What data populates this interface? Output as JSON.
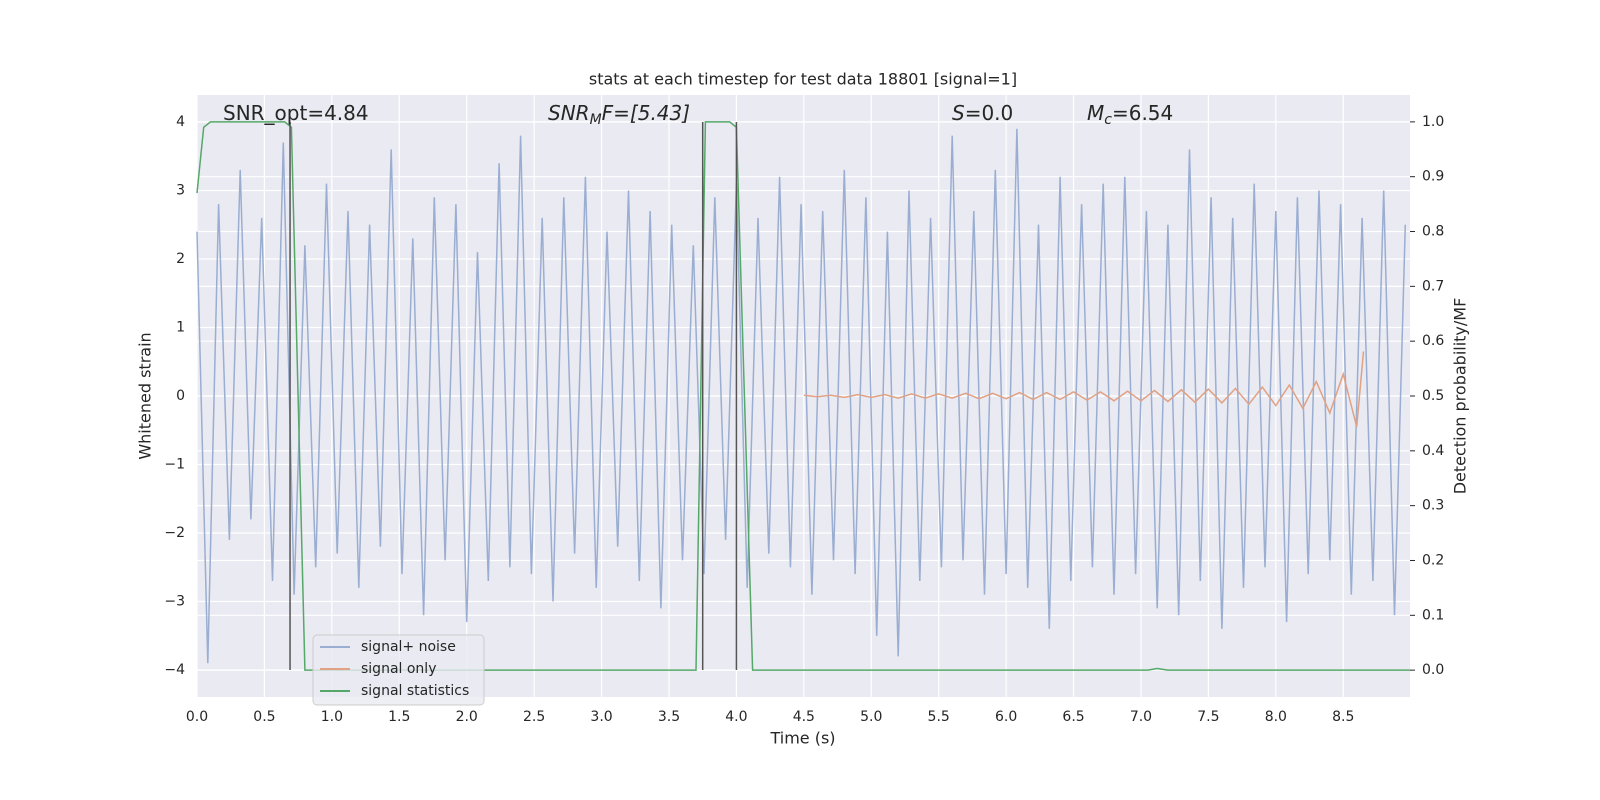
{
  "chart_data": {
    "type": "line",
    "title": "stats at each timestep for test data 18801 [signal=1]",
    "xlabel": "Time (s)",
    "ylabel": "Whitened strain",
    "y2label": "Detection probability/MF",
    "xlim": [
      0,
      8.995
    ],
    "ylim": [
      -4.394,
      4.394
    ],
    "y2lim": [
      -0.049,
      1.049
    ],
    "xticks": [
      {
        "value": 0,
        "label": "0.0"
      },
      0.5,
      {
        "value": 1,
        "label": "1.0"
      },
      1.5,
      {
        "value": 2,
        "label": "2.0"
      },
      2.5,
      {
        "value": 3,
        "label": "3.0"
      },
      3.5,
      {
        "value": 4,
        "label": "4.0"
      },
      4.5,
      {
        "value": 5,
        "label": "5.0"
      },
      5.5,
      {
        "value": 6,
        "label": "6.0"
      },
      6.5,
      {
        "value": 7,
        "label": "7.0"
      },
      7.5,
      {
        "value": 8,
        "label": "8.0"
      },
      8.5
    ],
    "yticks": [
      {
        "value": -4,
        "label": "−4"
      },
      {
        "value": -3,
        "label": "−3"
      },
      {
        "value": -2,
        "label": "−2"
      },
      {
        "value": -1,
        "label": "−1"
      },
      0,
      1,
      2,
      3,
      4
    ],
    "y2ticks": [
      {
        "value": 0,
        "label": "0.0"
      },
      0.1,
      0.2,
      0.3,
      0.4,
      0.5,
      0.6,
      0.7,
      0.8,
      0.9,
      {
        "value": 1,
        "label": "1.0"
      }
    ],
    "grid": true,
    "legend": "lower left",
    "series": [
      {
        "name": "signal+ noise",
        "color": "#9aaed1",
        "x": [
          0,
          0.08,
          0.16,
          0.24,
          0.32,
          0.4,
          0.48,
          0.56,
          0.64,
          0.72,
          0.8,
          0.88,
          0.96,
          1.04,
          1.12,
          1.2,
          1.28,
          1.36,
          1.44,
          1.52,
          1.6,
          1.68,
          1.76,
          1.84,
          1.92,
          2,
          2.08,
          2.16,
          2.24,
          2.32,
          2.4,
          2.48,
          2.56,
          2.64,
          2.72,
          2.8,
          2.88,
          2.96,
          3.04,
          3.12,
          3.2,
          3.28,
          3.36,
          3.44,
          3.52,
          3.6,
          3.68,
          3.76,
          3.84,
          3.92,
          4,
          4.08,
          4.16,
          4.24,
          4.32,
          4.4,
          4.48,
          4.56,
          4.64,
          4.72,
          4.8,
          4.88,
          4.96,
          5.04,
          5.12,
          5.2,
          5.28,
          5.36,
          5.44,
          5.52,
          5.6,
          5.68,
          5.76,
          5.84,
          5.92,
          6,
          6.08,
          6.16,
          6.24,
          6.32,
          6.4,
          6.48,
          6.56,
          6.64,
          6.72,
          6.8,
          6.88,
          6.96,
          7.04,
          7.12,
          7.2,
          7.28,
          7.36,
          7.44,
          7.52,
          7.6,
          7.68,
          7.76,
          7.84,
          7.92,
          8,
          8.08,
          8.16,
          8.24,
          8.32,
          8.4,
          8.48,
          8.56,
          8.64,
          8.72,
          8.8,
          8.88,
          8.96
        ],
        "values": [
          2.4,
          -3.9,
          2.8,
          -2.1,
          3.3,
          -1.8,
          2.6,
          -2.7,
          3.7,
          -2.9,
          2.2,
          -2.5,
          3.1,
          -2.3,
          2.7,
          -2.8,
          2.5,
          -2.2,
          3.6,
          -2.6,
          2.3,
          -3.2,
          2.9,
          -2.4,
          2.8,
          -3.3,
          2.1,
          -2.7,
          3.4,
          -2.5,
          3.8,
          -2.6,
          2.6,
          -3.0,
          2.9,
          -2.3,
          3.2,
          -2.8,
          2.4,
          -2.2,
          3.0,
          -2.7,
          2.7,
          -3.1,
          2.5,
          -2.4,
          2.2,
          -2.6,
          2.9,
          -2.1,
          3.1,
          -2.8,
          2.6,
          -2.3,
          3.2,
          -2.5,
          2.8,
          -2.9,
          2.7,
          -2.4,
          3.3,
          -2.6,
          2.9,
          -3.5,
          2.4,
          -3.8,
          3.0,
          -2.7,
          2.6,
          -2.5,
          3.8,
          -2.4,
          2.7,
          -2.9,
          3.3,
          -2.6,
          3.9,
          -2.8,
          2.5,
          -3.4,
          3.2,
          -2.7,
          2.8,
          -2.5,
          3.1,
          -2.9,
          3.2,
          -2.6,
          2.7,
          -3.1,
          2.5,
          -3.2,
          3.6,
          -2.7,
          2.9,
          -3.4,
          2.6,
          -2.8,
          3.1,
          -2.5,
          2.7,
          -3.3,
          2.9,
          -2.6,
          3.0,
          -2.4,
          2.8,
          -2.9,
          2.6,
          -2.7,
          3.0,
          -3.2,
          2.5
        ]
      },
      {
        "name": "signal only",
        "color": "#e0a184",
        "x": [
          4.5,
          4.6,
          4.7,
          4.8,
          4.9,
          5.0,
          5.1,
          5.2,
          5.3,
          5.4,
          5.5,
          5.6,
          5.7,
          5.8,
          5.9,
          6.0,
          6.1,
          6.2,
          6.3,
          6.4,
          6.5,
          6.6,
          6.7,
          6.8,
          6.9,
          7.0,
          7.1,
          7.2,
          7.3,
          7.4,
          7.5,
          7.6,
          7.7,
          7.8,
          7.9,
          8.0,
          8.1,
          8.2,
          8.3,
          8.4,
          8.5,
          8.6,
          8.65
        ],
        "values": [
          0.01,
          -0.01,
          0.01,
          -0.02,
          0.02,
          -0.02,
          0.02,
          -0.03,
          0.03,
          -0.03,
          0.03,
          -0.03,
          0.04,
          -0.04,
          0.04,
          -0.04,
          0.05,
          -0.05,
          0.05,
          -0.05,
          0.06,
          -0.06,
          0.06,
          -0.07,
          0.07,
          -0.07,
          0.08,
          -0.08,
          0.09,
          -0.09,
          0.1,
          -0.1,
          0.11,
          -0.12,
          0.13,
          -0.14,
          0.16,
          -0.18,
          0.21,
          -0.25,
          0.32,
          -0.45,
          0.65
        ]
      },
      {
        "name": "signal statistics",
        "color": "#55a868",
        "axis": "y2",
        "x": [
          0,
          0.05,
          0.1,
          0.65,
          0.7,
          0.8,
          3.7,
          3.77,
          3.95,
          4.0,
          4.12,
          7.05,
          7.12,
          7.2,
          8.995
        ],
        "values": [
          0.87,
          0.99,
          1.0,
          1.0,
          0.99,
          0.0,
          0.0,
          1.0,
          1.0,
          0.99,
          0.0,
          0.0,
          0.003,
          0.0,
          0.0
        ]
      }
    ],
    "vlines": {
      "x": [
        0.69,
        3.75,
        4.0
      ],
      "ymin": -4,
      "ymax": 4,
      "color": "#555555"
    },
    "annotations": [
      {
        "text": "SNR_opt=4.84"
      },
      {
        "base": "SNR",
        "sub": "M",
        "tail": "F=[5.43]"
      },
      {
        "base": "S",
        "tail": "=0.0"
      },
      {
        "base": "M",
        "sub": "c",
        "tail": "=6.54"
      }
    ]
  }
}
